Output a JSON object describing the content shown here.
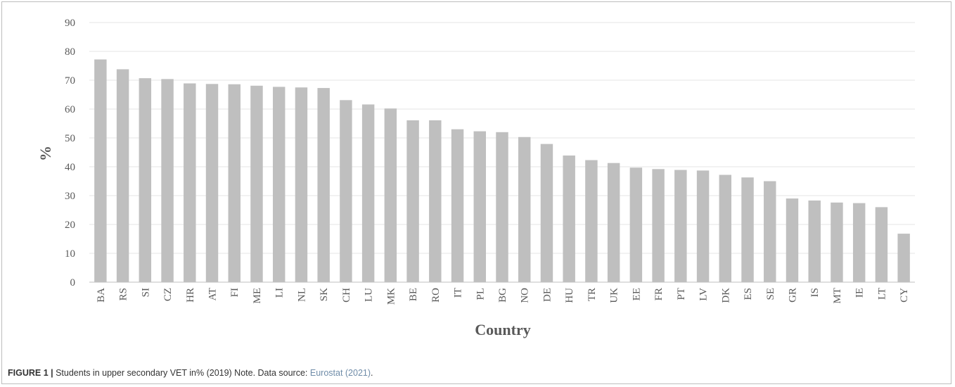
{
  "chart_data": {
    "type": "bar",
    "categories": [
      "BA",
      "RS",
      "SI",
      "CZ",
      "HR",
      "AT",
      "FI",
      "ME",
      "LI",
      "NL",
      "SK",
      "CH",
      "LU",
      "MK",
      "BE",
      "RO",
      "IT",
      "PL",
      "BG",
      "NO",
      "DE",
      "HU",
      "TR",
      "UK",
      "EE",
      "FR",
      "PT",
      "LV",
      "DK",
      "ES",
      "SE",
      "GR",
      "IS",
      "MT",
      "IE",
      "LT",
      "CY"
    ],
    "values": [
      77.2,
      73.8,
      70.7,
      70.4,
      68.9,
      68.7,
      68.6,
      68.1,
      67.7,
      67.5,
      67.3,
      63.1,
      61.6,
      60.2,
      56.1,
      56.1,
      53.0,
      52.3,
      52.0,
      50.3,
      47.9,
      43.9,
      42.3,
      41.3,
      39.7,
      39.2,
      38.9,
      38.7,
      37.2,
      36.3,
      35.0,
      29.0,
      28.3,
      27.6,
      27.4,
      26.0,
      16.8
    ],
    "xlabel": "Country",
    "ylabel": "%",
    "ylim": [
      0,
      90
    ],
    "yticks": [
      0,
      10,
      20,
      30,
      40,
      50,
      60,
      70,
      80,
      90
    ],
    "grid": true,
    "bar_color": "#bfbfbf"
  },
  "caption": {
    "figure_label": "FIGURE 1 |",
    "text": " Students in upper secondary VET in% (2019) Note. Data source: ",
    "source_link": "Eurostat (2021)",
    "end": "."
  }
}
